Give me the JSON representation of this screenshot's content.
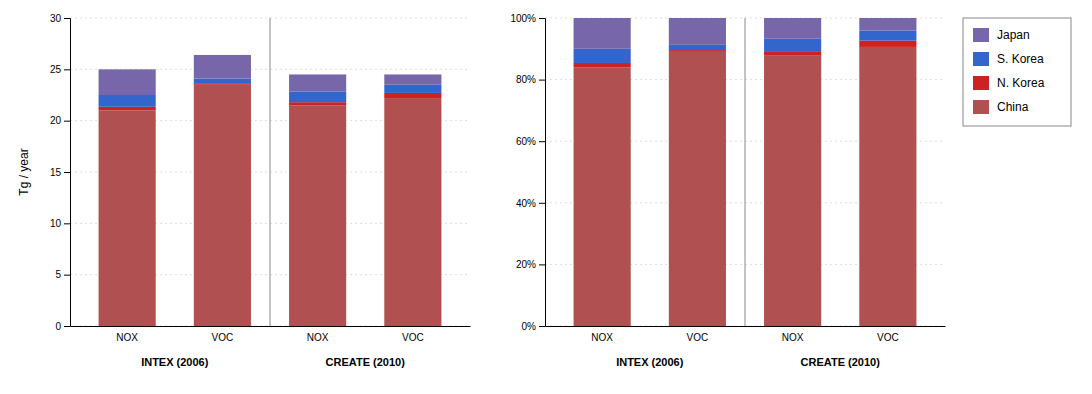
{
  "chart_data": [
    {
      "type": "bar",
      "stacked": true,
      "grid": true,
      "ylabel": "Tg / year",
      "categories": [
        "NOX",
        "VOC",
        "NOX",
        "VOC"
      ],
      "annotations": [
        "INTEX (2006)",
        "CREATE (2010)"
      ],
      "ylim": [
        0,
        30
      ],
      "yticks": [
        0,
        5,
        10,
        15,
        20,
        25,
        30
      ],
      "series": [
        {
          "name": "China",
          "color": "#b05050",
          "values": [
            21.0,
            23.5,
            21.5,
            22.2
          ]
        },
        {
          "name": "N. Korea",
          "color": "#cc2222",
          "values": [
            0.35,
            0.15,
            0.3,
            0.5
          ]
        },
        {
          "name": "S. Korea",
          "color": "#3366cc",
          "values": [
            1.15,
            0.45,
            1.05,
            0.8
          ]
        },
        {
          "name": "Japan",
          "color": "#7766aa",
          "values": [
            2.5,
            2.3,
            1.65,
            1.0
          ]
        }
      ]
    },
    {
      "type": "bar",
      "stacked": true,
      "grid": true,
      "legend": "right",
      "categories": [
        "NOX",
        "VOC",
        "NOX",
        "VOC"
      ],
      "annotations": [
        "INTEX (2006)",
        "CREATE (2010)"
      ],
      "ylim": [
        0,
        1.0
      ],
      "yticks": [
        {
          "value": 0,
          "label": "0%"
        },
        {
          "value": 0.2,
          "label": "20%"
        },
        {
          "value": 0.4,
          "label": "40%"
        },
        {
          "value": 0.6,
          "label": "60%"
        },
        {
          "value": 0.8,
          "label": "80%"
        },
        {
          "value": 1.0,
          "label": "100%"
        }
      ],
      "series": [
        {
          "name": "China",
          "color": "#b05050",
          "values": [
            0.84,
            0.890152,
            0.877551,
            0.906122
          ]
        },
        {
          "name": "N. Korea",
          "color": "#cc2222",
          "values": [
            0.014,
            0.005682,
            0.012245,
            0.020408
          ]
        },
        {
          "name": "S. Korea",
          "color": "#3366cc",
          "values": [
            0.046,
            0.017045,
            0.042857,
            0.032653
          ]
        },
        {
          "name": "Japan",
          "color": "#7766aa",
          "values": [
            0.1,
            0.087121,
            0.067347,
            0.040816
          ]
        }
      ]
    }
  ]
}
